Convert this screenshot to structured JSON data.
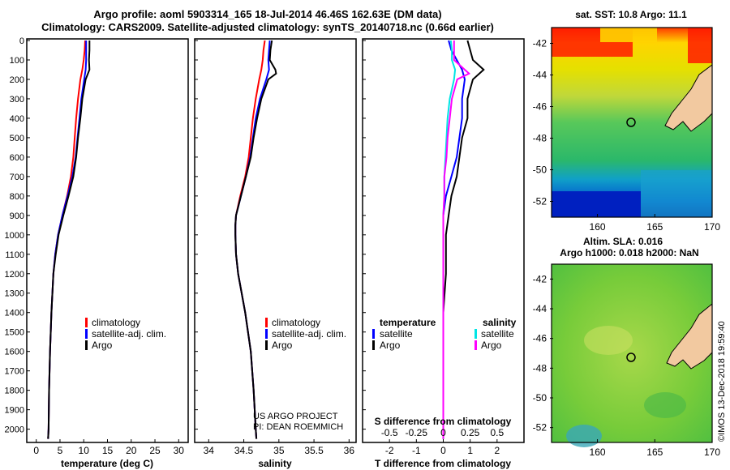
{
  "header": {
    "line1": "Argo profile: aoml 5903314_165 18-Jul-2014 46.46S 162.63E (DM data)",
    "line2": "Climatology: CARS2009. Satellite-adjusted climatology: synTS_20140718.nc (0.66d earlier)"
  },
  "depth_ticks": [
    "0",
    "100",
    "200",
    "300",
    "400",
    "500",
    "600",
    "700",
    "800",
    "900",
    "1000",
    "1100",
    "1200",
    "1300",
    "1400",
    "1500",
    "1600",
    "1700",
    "1800",
    "1900",
    "2000"
  ],
  "colors": {
    "climatology": "#ff0000",
    "satellite": "#0000ff",
    "argo": "#000000",
    "sat_s": "#00e5e5",
    "sal_argo": "#ff00ff"
  },
  "chart_data": [
    {
      "type": "line",
      "xlabel": "temperature (deg C)",
      "xticks": [
        "0",
        "5",
        "10",
        "15",
        "20",
        "25",
        "30"
      ],
      "xlim": [
        -2,
        32
      ],
      "ylim": [
        2060,
        0
      ],
      "series": [
        {
          "name": "climatology",
          "depth": [
            0,
            50,
            100,
            150,
            200,
            300,
            400,
            500,
            600,
            700,
            800,
            900,
            1000,
            1100,
            1200,
            1400,
            1600,
            1800,
            2000,
            2050
          ],
          "values": [
            10.3,
            10.2,
            10.0,
            9.7,
            9.3,
            8.8,
            8.4,
            8.1,
            7.8,
            7.3,
            6.5,
            5.5,
            4.6,
            4.0,
            3.6,
            3.2,
            2.9,
            2.7,
            2.6,
            2.5
          ]
        },
        {
          "name": "satellite-adj. clim.",
          "depth": [
            0,
            50,
            100,
            150,
            200,
            300,
            400,
            500,
            600,
            700,
            800,
            900,
            1000,
            1100,
            1200,
            1400,
            1600,
            1800,
            2000,
            2050
          ],
          "values": [
            10.5,
            10.5,
            10.5,
            10.4,
            10.1,
            9.5,
            9.1,
            8.7,
            8.3,
            7.6,
            6.6,
            5.5,
            4.6,
            4.0,
            3.6,
            3.2,
            2.9,
            2.7,
            2.6,
            2.5
          ]
        },
        {
          "name": "Argo",
          "depth": [
            0,
            50,
            100,
            150,
            200,
            300,
            400,
            500,
            600,
            700,
            800,
            900,
            1000,
            1100,
            1200,
            1400,
            1600,
            1800,
            2000,
            2050
          ],
          "values": [
            11.2,
            11.2,
            11.1,
            11.2,
            10.4,
            9.7,
            9.3,
            8.8,
            8.4,
            7.8,
            6.8,
            5.7,
            4.7,
            4.1,
            3.6,
            3.2,
            2.9,
            2.7,
            2.6,
            2.5
          ]
        }
      ],
      "legend": [
        "climatology",
        "satellite-adj. clim.",
        "Argo"
      ]
    },
    {
      "type": "line",
      "xlabel": "salinity",
      "xticks": [
        "34",
        "34.5",
        "35",
        "35.5",
        "36"
      ],
      "xlim": [
        33.8,
        36.1
      ],
      "ylim": [
        2060,
        0
      ],
      "series": [
        {
          "name": "climatology",
          "depth": [
            0,
            50,
            100,
            150,
            200,
            300,
            400,
            500,
            600,
            700,
            800,
            900,
            950,
            1000,
            1100,
            1200,
            1400,
            1600,
            1800,
            2000,
            2050
          ],
          "values": [
            34.8,
            34.78,
            34.77,
            34.75,
            34.72,
            34.67,
            34.63,
            34.6,
            34.57,
            34.52,
            34.45,
            34.39,
            34.38,
            34.38,
            34.39,
            34.42,
            34.52,
            34.6,
            34.64,
            34.67,
            34.68
          ]
        },
        {
          "name": "satellite-adj. clim.",
          "depth": [
            0,
            50,
            100,
            150,
            200,
            300,
            400,
            500,
            600,
            700,
            800,
            900,
            950,
            1000,
            1100,
            1200,
            1400,
            1600,
            1800,
            2000,
            2050
          ],
          "values": [
            34.87,
            34.86,
            34.85,
            34.86,
            34.82,
            34.73,
            34.67,
            34.63,
            34.59,
            34.53,
            34.46,
            34.39,
            34.38,
            34.38,
            34.39,
            34.42,
            34.52,
            34.6,
            34.64,
            34.67,
            34.68
          ]
        },
        {
          "name": "Argo",
          "depth": [
            0,
            50,
            100,
            150,
            170,
            200,
            300,
            400,
            500,
            600,
            700,
            800,
            900,
            950,
            1000,
            1100,
            1200,
            1400,
            1600,
            1800,
            2000,
            2050
          ],
          "values": [
            34.9,
            34.88,
            34.87,
            34.95,
            34.96,
            34.85,
            34.75,
            34.69,
            34.64,
            34.6,
            34.53,
            34.46,
            34.39,
            34.38,
            34.38,
            34.39,
            34.42,
            34.52,
            34.6,
            34.64,
            34.67,
            34.68
          ]
        }
      ],
      "legend": [
        "climatology",
        "satellite-adj. clim.",
        "Argo"
      ],
      "credit": [
        "US ARGO PROJECT",
        "PI: DEAN ROEMMICH"
      ]
    },
    {
      "type": "line",
      "xlabel": "T difference from climatology",
      "s_label": "S difference from climatology",
      "xticks": [
        "-2",
        "-1",
        "0",
        "1",
        "2"
      ],
      "s_ticks": [
        "-0.5",
        "-0.25",
        "0",
        "0.25",
        "0.5"
      ],
      "xlim": [
        -3,
        3
      ],
      "ylim": [
        2060,
        0
      ],
      "series": [
        {
          "name": "temperature satellite",
          "depth": [
            0,
            50,
            100,
            150,
            200,
            300,
            400,
            500,
            600,
            700,
            800,
            900,
            1000,
            1100,
            1200,
            1400,
            1600,
            1800,
            2000,
            2050
          ],
          "values": [
            0.2,
            0.3,
            0.5,
            0.7,
            0.8,
            0.7,
            0.7,
            0.6,
            0.5,
            0.3,
            0.1,
            0.0,
            0.0,
            0.0,
            0.0,
            0.0,
            0.0,
            0.0,
            0.0,
            0.0
          ]
        },
        {
          "name": "temperature Argo",
          "depth": [
            0,
            50,
            100,
            150,
            200,
            300,
            400,
            500,
            600,
            700,
            800,
            900,
            1000,
            1100,
            1200,
            1400,
            1600,
            1800,
            2000,
            2050
          ],
          "values": [
            0.9,
            1.0,
            1.1,
            1.5,
            1.1,
            0.9,
            0.9,
            0.7,
            0.6,
            0.5,
            0.3,
            0.2,
            0.1,
            0.1,
            0.1,
            0.0,
            0.0,
            0.0,
            0.0,
            0.0
          ]
        },
        {
          "name": "salinity satellite",
          "depth": [
            0,
            50,
            100,
            150,
            200,
            300,
            400,
            500,
            600,
            700,
            800,
            900,
            1000,
            1100,
            1200,
            1400,
            1600,
            1800,
            2000,
            2050
          ],
          "values": [
            0.07,
            0.08,
            0.08,
            0.11,
            0.1,
            0.06,
            0.04,
            0.03,
            0.02,
            0.01,
            0.01,
            0.0,
            0.0,
            0.0,
            0.0,
            0.0,
            0.0,
            0.0,
            0.0,
            0.0
          ]
        },
        {
          "name": "salinity Argo",
          "depth": [
            0,
            50,
            100,
            150,
            170,
            200,
            300,
            400,
            500,
            600,
            700,
            800,
            900,
            1000,
            1100,
            1200,
            1400,
            1600,
            1800,
            2000,
            2050
          ],
          "values": [
            0.1,
            0.1,
            0.1,
            0.2,
            0.24,
            0.13,
            0.08,
            0.06,
            0.04,
            0.03,
            0.01,
            0.01,
            0.0,
            0.0,
            0.0,
            0.0,
            0.0,
            0.0,
            0.0,
            0.0,
            0.0
          ]
        }
      ],
      "legend_left": {
        "title": "temperature",
        "items": [
          "satellite",
          "Argo"
        ]
      },
      "legend_right": {
        "title": "salinity",
        "items": [
          "satellite",
          "Argo"
        ]
      }
    },
    {
      "type": "heatmap",
      "title": "sat. SST: 10.8 Argo: 11.1",
      "xticks": [
        "160",
        "165",
        "170"
      ],
      "yticks": [
        "-42",
        "-44",
        "-46",
        "-48",
        "-50",
        "-52"
      ],
      "xlim": [
        156,
        170
      ],
      "ylim": [
        -53,
        -41
      ]
    },
    {
      "type": "heatmap",
      "title": [
        "Altim. SLA: 0.016",
        "Argo h1000: 0.018 h2000: NaN"
      ],
      "xticks": [
        "160",
        "165",
        "170"
      ],
      "yticks": [
        "-42",
        "-44",
        "-46",
        "-48",
        "-50",
        "-52"
      ],
      "xlim": [
        156,
        170
      ],
      "ylim": [
        -53,
        -41
      ]
    }
  ],
  "footer": "©IMOS 13-Dec-2018 19:59:40"
}
